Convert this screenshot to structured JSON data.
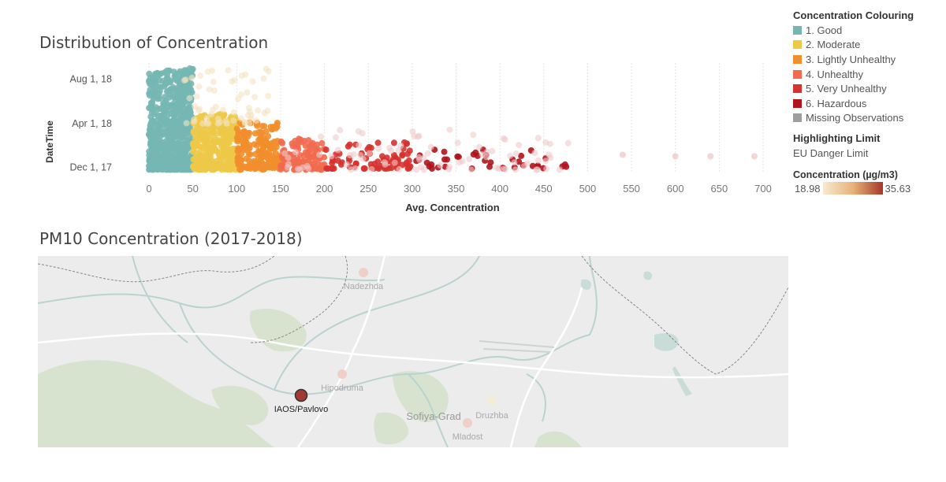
{
  "scatter_title": "Distribution of Concentration",
  "map_title": "PM10 Concentration (2017-2018)",
  "legend": {
    "title": "Concentration Colouring",
    "items": [
      {
        "label": "1. Good",
        "color": "#76b7b2"
      },
      {
        "label": "2. Moderate",
        "color": "#edc948"
      },
      {
        "label": "3. Lightly Unhealthy",
        "color": "#f28e2b"
      },
      {
        "label": "4. Unhealthy",
        "color": "#f26a4f"
      },
      {
        "label": "5. Very Unhealthy",
        "color": "#d6322f"
      },
      {
        "label": "6. Hazardous",
        "color": "#b0141c"
      },
      {
        "label": "Missing Observations",
        "color": "#9e9e9e"
      }
    ]
  },
  "highlight": {
    "title": "Highlighting Limit",
    "value": "EU Danger Limit"
  },
  "gradient": {
    "title": "Concentration (µg/m3)",
    "min": "18.98",
    "max": "35.63",
    "from": "#f7e9cf",
    "to": "#a5372a"
  },
  "chart_data": {
    "type": "scatter",
    "title": "Distribution of Concentration",
    "xlabel": "Avg. Concentration",
    "ylabel": "DateTime",
    "xlim": [
      0,
      700
    ],
    "xticks": [
      0,
      50,
      100,
      150,
      200,
      250,
      300,
      350,
      400,
      450,
      500,
      550,
      600,
      650,
      700
    ],
    "yticks": [
      "Aug 1, 18",
      "Apr 1, 18",
      "Dec 1, 17"
    ],
    "ylim": [
      "2017-11-15",
      "2018-09-15"
    ],
    "grid": "vertical",
    "series_categories": [
      {
        "name": "1. Good",
        "x_range": [
          0,
          50
        ]
      },
      {
        "name": "2. Moderate",
        "x_range": [
          50,
          100
        ]
      },
      {
        "name": "3. Lightly Unhealthy",
        "x_range": [
          100,
          150
        ]
      },
      {
        "name": "4. Unhealthy",
        "x_range": [
          150,
          200
        ]
      },
      {
        "name": "5. Very Unhealthy",
        "x_range": [
          200,
          300
        ]
      },
      {
        "name": "6. Hazardous",
        "x_range": [
          300,
          700
        ]
      }
    ],
    "outliers": [
      {
        "x": 540,
        "date": "2018-01-05"
      },
      {
        "x": 600,
        "date": "2018-01-01"
      },
      {
        "x": 640,
        "date": "2018-01-01"
      },
      {
        "x": 690,
        "date": "2018-01-01"
      }
    ]
  },
  "map": {
    "station": "IAOS/Pavlovo",
    "places": [
      "Nadezhda",
      "Hipodruma",
      "Sofiya-Grad",
      "Druzhba",
      "Mladost"
    ]
  }
}
